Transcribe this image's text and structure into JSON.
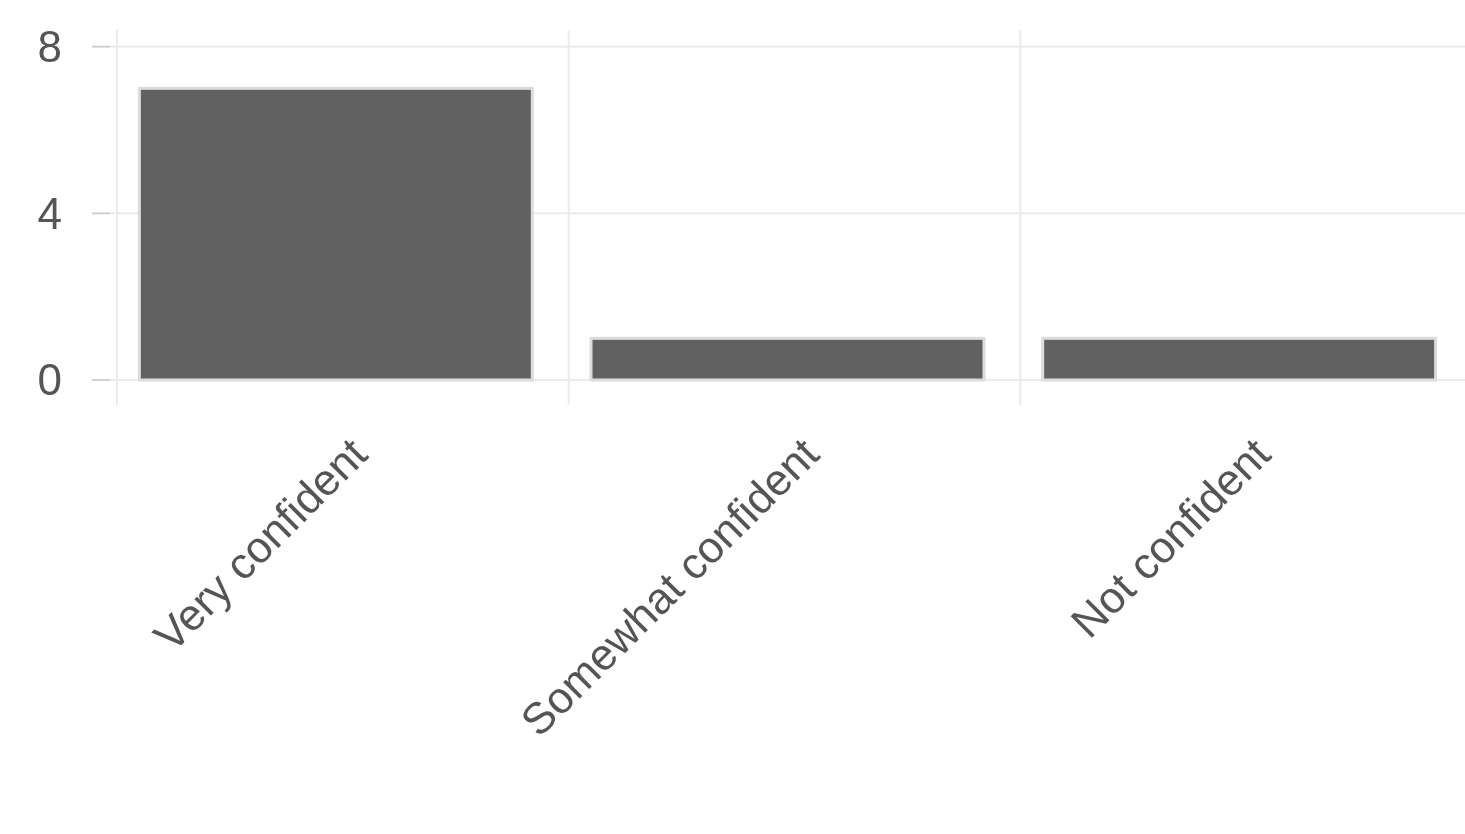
{
  "chart_data": {
    "type": "bar",
    "categories": [
      "Very confident",
      "Somewhat confident",
      "Not confident"
    ],
    "values": [
      7,
      1,
      1
    ],
    "color": "#616161",
    "ylim": [
      -0.6,
      8.4
    ],
    "yticks": [
      0,
      4,
      8
    ],
    "grid": true
  }
}
